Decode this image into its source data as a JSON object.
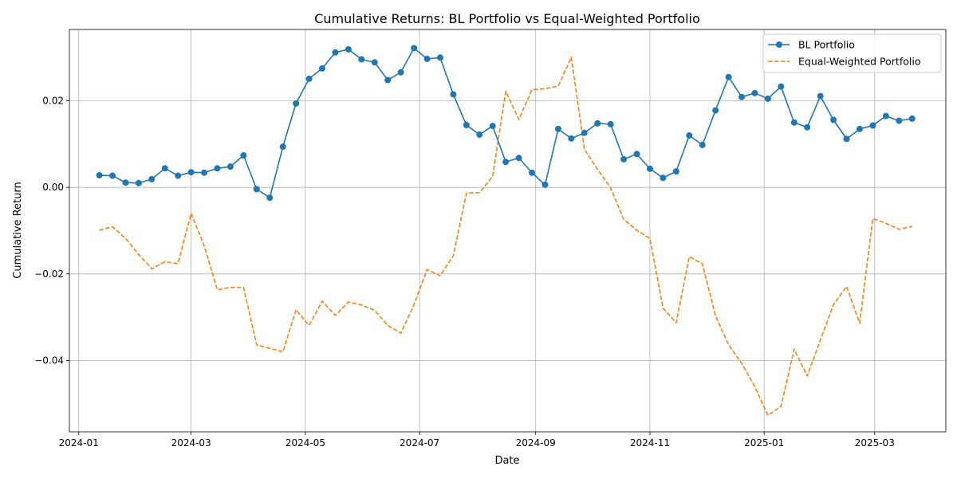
{
  "chart_data": {
    "type": "line",
    "title": "Cumulative Returns: BL Portfolio vs Equal-Weighted Portfolio",
    "xlabel": "Date",
    "ylabel": "Cumulative Return",
    "xlim": [
      "2023-12-27",
      "2025-04-08"
    ],
    "ylim": [
      -0.0565,
      0.0365
    ],
    "grid": true,
    "legend_position": "top-right",
    "x_ticks": [
      "2024-01",
      "2024-03",
      "2024-05",
      "2024-07",
      "2024-09",
      "2024-11",
      "2025-01",
      "2025-03"
    ],
    "x_tick_dates": [
      "2024-01-01",
      "2024-03-01",
      "2024-05-01",
      "2024-07-01",
      "2024-09-01",
      "2024-11-01",
      "2025-01-01",
      "2025-03-01"
    ],
    "y_ticks": [
      -0.04,
      -0.02,
      0.0,
      0.02
    ],
    "y_tick_labels": [
      "−0.04",
      "−0.02",
      "0.00",
      "0.02"
    ],
    "x": [
      "2024-01-12",
      "2024-01-19",
      "2024-01-26",
      "2024-02-02",
      "2024-02-09",
      "2024-02-16",
      "2024-02-23",
      "2024-03-01",
      "2024-03-08",
      "2024-03-15",
      "2024-03-22",
      "2024-03-29",
      "2024-04-05",
      "2024-04-12",
      "2024-04-19",
      "2024-04-26",
      "2024-05-03",
      "2024-05-10",
      "2024-05-17",
      "2024-05-24",
      "2024-05-31",
      "2024-06-07",
      "2024-06-14",
      "2024-06-21",
      "2024-06-28",
      "2024-07-05",
      "2024-07-12",
      "2024-07-19",
      "2024-07-26",
      "2024-08-02",
      "2024-08-09",
      "2024-08-16",
      "2024-08-23",
      "2024-08-30",
      "2024-09-06",
      "2024-09-13",
      "2024-09-20",
      "2024-09-27",
      "2024-10-04",
      "2024-10-11",
      "2024-10-18",
      "2024-10-25",
      "2024-11-01",
      "2024-11-08",
      "2024-11-15",
      "2024-11-22",
      "2024-11-29",
      "2024-12-06",
      "2024-12-13",
      "2024-12-20",
      "2024-12-27",
      "2025-01-03",
      "2025-01-10",
      "2025-01-17",
      "2025-01-24",
      "2025-01-31",
      "2025-02-07",
      "2025-02-14",
      "2025-02-21",
      "2025-02-28",
      "2025-03-07",
      "2025-03-14",
      "2025-03-21"
    ],
    "series": [
      {
        "name": "BL Portfolio",
        "color": "#1f77b4",
        "style": "solid",
        "marker": "circle",
        "values": [
          0.0028,
          0.0027,
          0.0011,
          0.001,
          0.0019,
          0.0044,
          0.0027,
          0.0035,
          0.0034,
          0.0044,
          0.0048,
          0.0074,
          -0.0004,
          -0.0024,
          0.0094,
          0.0194,
          0.0251,
          0.0275,
          0.0312,
          0.0319,
          0.0296,
          0.0289,
          0.0248,
          0.0266,
          0.0322,
          0.0297,
          0.03,
          0.0215,
          0.0144,
          0.0122,
          0.0142,
          0.0059,
          0.0068,
          0.0034,
          0.0006,
          0.0135,
          0.0113,
          0.0126,
          0.0148,
          0.0146,
          0.0065,
          0.0077,
          0.0043,
          0.0022,
          0.0037,
          0.012,
          0.0098,
          0.0178,
          0.0255,
          0.0209,
          0.0218,
          0.0205,
          0.0233,
          0.015,
          0.0139,
          0.0211,
          0.0156,
          0.0112,
          0.0135,
          0.0143,
          0.0165,
          0.0154,
          0.0159
        ]
      },
      {
        "name": "Equal-Weighted Portfolio",
        "color": "#ff7f0e",
        "style": "dashed",
        "marker": "none",
        "values": [
          -0.0099,
          -0.0091,
          -0.0118,
          -0.0155,
          -0.0188,
          -0.0172,
          -0.0176,
          -0.006,
          -0.0135,
          -0.0237,
          -0.0231,
          -0.0231,
          -0.0364,
          -0.0372,
          -0.038,
          -0.0283,
          -0.0319,
          -0.0263,
          -0.0296,
          -0.0265,
          -0.0272,
          -0.0284,
          -0.0319,
          -0.0337,
          -0.0271,
          -0.019,
          -0.0204,
          -0.0158,
          -0.0013,
          -0.0012,
          0.0025,
          0.0222,
          0.0157,
          0.0226,
          0.0228,
          0.0234,
          0.0301,
          0.0088,
          0.0042,
          -0.0001,
          -0.0074,
          -0.0099,
          -0.0118,
          -0.0279,
          -0.0313,
          -0.016,
          -0.0177,
          -0.0297,
          -0.0364,
          -0.0407,
          -0.0461,
          -0.0527,
          -0.0506,
          -0.0374,
          -0.0436,
          -0.0353,
          -0.0271,
          -0.0229,
          -0.0314,
          -0.0072,
          -0.0083,
          -0.0097,
          -0.009
        ]
      }
    ]
  }
}
